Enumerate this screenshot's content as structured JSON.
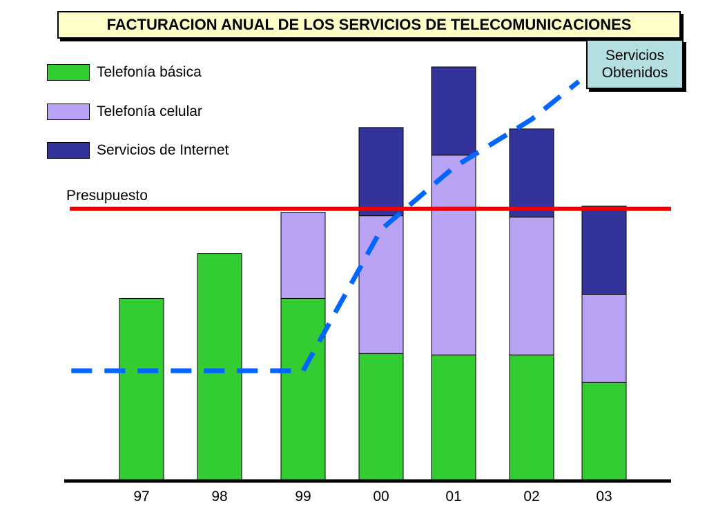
{
  "chart_data": {
    "type": "bar",
    "stacked": true,
    "title": "FACTURACION ANUAL DE LOS SERVICIOS DE TELECOMUNICACIONES",
    "categories": [
      "97",
      "98",
      "99",
      "00",
      "01",
      "02",
      "03"
    ],
    "series": [
      {
        "name": "Telefonía básica",
        "color": "#33cc33",
        "values": [
          265,
          330,
          265,
          185,
          183,
          183,
          143
        ]
      },
      {
        "name": "Telefonía celular",
        "color": "#b8a3f5",
        "values": [
          0,
          0,
          125,
          200,
          290,
          200,
          128
        ]
      },
      {
        "name": "Servicios de Internet",
        "color": "#333399",
        "values": [
          0,
          0,
          0,
          128,
          128,
          128,
          128
        ]
      }
    ],
    "ylim": [
      0,
      610
    ],
    "budget": {
      "label": "Presupuesto",
      "value": 395,
      "color": "#ee0000"
    },
    "obtained_line": {
      "label": "Servicios Obtenidos",
      "color": "#0066ff",
      "x": [
        -0.9,
        2.0,
        3.0,
        4.0,
        5.0,
        5.65
      ],
      "y": [
        160,
        160,
        365,
        455,
        525,
        580
      ]
    },
    "xlabel": "",
    "ylabel": ""
  },
  "obtained_box": {
    "line1": "Servicios",
    "line2": "Obtenidos"
  }
}
